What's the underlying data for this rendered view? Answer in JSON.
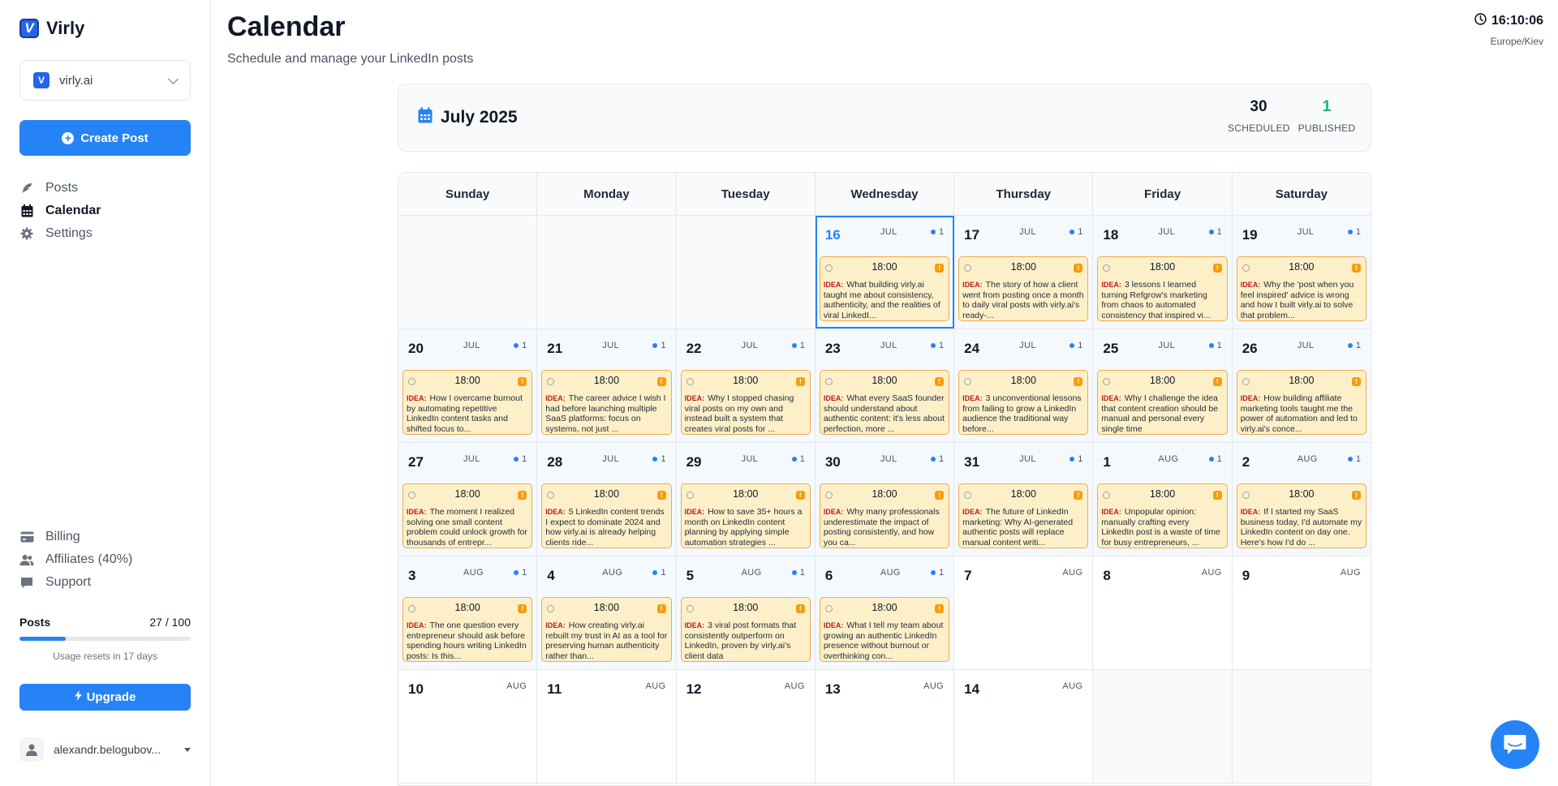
{
  "brand": {
    "logo_letter": "V",
    "name": "Virly"
  },
  "workspace": {
    "logo_letter": "V",
    "name": "virly.ai"
  },
  "create_post_label": "Create Post",
  "nav": [
    {
      "label": "Posts",
      "icon": "feather-icon",
      "active": false
    },
    {
      "label": "Calendar",
      "icon": "calendar-icon",
      "active": true
    },
    {
      "label": "Settings",
      "icon": "gear-icon",
      "active": false
    }
  ],
  "bottom_nav": [
    {
      "label": "Billing",
      "icon": "credit-card-icon"
    },
    {
      "label": "Affiliates (40%)",
      "icon": "users-icon"
    },
    {
      "label": "Support",
      "icon": "chat-icon"
    }
  ],
  "usage": {
    "label": "Posts",
    "count": "27 / 100",
    "fraction": 0.27,
    "note": "Usage resets in 17 days"
  },
  "upgrade_label": "Upgrade",
  "user": {
    "name": "alexandr.belogubov..."
  },
  "header": {
    "title": "Calendar",
    "subtitle": "Schedule and manage your LinkedIn posts"
  },
  "clock": {
    "time": "16:10:06",
    "timezone": "Europe/Kiev"
  },
  "month": {
    "label": "July 2025",
    "scheduled_count": "30",
    "scheduled_label": "SCHEDULED",
    "published_count": "1",
    "published_label": "PUBLISHED"
  },
  "colors": {
    "accent": "#2583f5",
    "published": "#16b57a",
    "post_bg": "#fdf0c9",
    "post_border": "#f2a94b"
  },
  "weekdays": [
    "Sunday",
    "Monday",
    "Tuesday",
    "Wednesday",
    "Thursday",
    "Friday",
    "Saturday"
  ],
  "weeks": [
    [
      {
        "empty": true
      },
      {
        "empty": true
      },
      {
        "empty": true
      },
      {
        "day": "16",
        "month": "JUL",
        "count": "1",
        "today": true,
        "post": {
          "time": "18:00",
          "tag": "IDEA:",
          "text": "What building virly.ai taught me about consistency, authenticity, and the realities of viral LinkedI..."
        }
      },
      {
        "day": "17",
        "month": "JUL",
        "count": "1",
        "post": {
          "time": "18:00",
          "tag": "IDEA:",
          "text": "The story of how a client went from posting once a month to daily viral posts with virly.ai's ready-..."
        }
      },
      {
        "day": "18",
        "month": "JUL",
        "count": "1",
        "post": {
          "time": "18:00",
          "tag": "IDEA:",
          "text": "3 lessons I learned turning Refgrow's marketing from chaos to automated consistency that inspired vi..."
        }
      },
      {
        "day": "19",
        "month": "JUL",
        "count": "1",
        "post": {
          "time": "18:00",
          "tag": "IDEA:",
          "text": "Why the 'post when you feel inspired' advice is wrong and how I built virly.ai to solve that problem..."
        }
      }
    ],
    [
      {
        "day": "20",
        "month": "JUL",
        "count": "1",
        "post": {
          "time": "18:00",
          "tag": "IDEA:",
          "text": "How I overcame burnout by automating repetitive LinkedIn content tasks and shifted focus to..."
        }
      },
      {
        "day": "21",
        "month": "JUL",
        "count": "1",
        "post": {
          "time": "18:00",
          "tag": "IDEA:",
          "text": "The career advice I wish I had before launching multiple SaaS platforms: focus on systems, not just ..."
        }
      },
      {
        "day": "22",
        "month": "JUL",
        "count": "1",
        "post": {
          "time": "18:00",
          "tag": "IDEA:",
          "text": "Why I stopped chasing viral posts on my own and instead built a system that creates viral posts for ..."
        }
      },
      {
        "day": "23",
        "month": "JUL",
        "count": "1",
        "post": {
          "time": "18:00",
          "tag": "IDEA:",
          "text": "What every SaaS founder should understand about authentic content: it's less about perfection, more ..."
        }
      },
      {
        "day": "24",
        "month": "JUL",
        "count": "1",
        "post": {
          "time": "18:00",
          "tag": "IDEA:",
          "text": "3 unconventional lessons from failing to grow a LinkedIn audience the traditional way before..."
        }
      },
      {
        "day": "25",
        "month": "JUL",
        "count": "1",
        "post": {
          "time": "18:00",
          "tag": "IDEA:",
          "text": "Why I challenge the idea that content creation should be manual and personal every single time"
        }
      },
      {
        "day": "26",
        "month": "JUL",
        "count": "1",
        "post": {
          "time": "18:00",
          "tag": "IDEA:",
          "text": "How building affiliate marketing tools taught me the power of automation and led to virly.ai's conce..."
        }
      }
    ],
    [
      {
        "day": "27",
        "month": "JUL",
        "count": "1",
        "post": {
          "time": "18:00",
          "tag": "IDEA:",
          "text": "The moment I realized solving one small content problem could unlock growth for thousands of entrepr..."
        }
      },
      {
        "day": "28",
        "month": "JUL",
        "count": "1",
        "post": {
          "time": "18:00",
          "tag": "IDEA:",
          "text": "5 LinkedIn content trends I expect to dominate 2024 and how virly.ai is already helping clients ride..."
        }
      },
      {
        "day": "29",
        "month": "JUL",
        "count": "1",
        "post": {
          "time": "18:00",
          "tag": "IDEA:",
          "text": "How to save 35+ hours a month on LinkedIn content planning by applying simple automation strategies ..."
        }
      },
      {
        "day": "30",
        "month": "JUL",
        "count": "1",
        "post": {
          "time": "18:00",
          "tag": "IDEA:",
          "text": "Why many professionals underestimate the impact of posting consistently, and how you ca..."
        }
      },
      {
        "day": "31",
        "month": "JUL",
        "count": "1",
        "post": {
          "time": "18:00",
          "tag": "IDEA:",
          "text": "The future of LinkedIn marketing: Why AI-generated authentic posts will replace manual content writi..."
        }
      },
      {
        "day": "1",
        "month": "AUG",
        "count": "1",
        "post": {
          "time": "18:00",
          "tag": "IDEA:",
          "text": "Unpopular opinion: manually crafting every LinkedIn post is a waste of time for busy entrepreneurs, ..."
        }
      },
      {
        "day": "2",
        "month": "AUG",
        "count": "1",
        "post": {
          "time": "18:00",
          "tag": "IDEA:",
          "text": "If I started my SaaS business today, I'd automate my LinkedIn content on day one. Here's how I'd do ..."
        }
      }
    ],
    [
      {
        "day": "3",
        "month": "AUG",
        "count": "1",
        "post": {
          "time": "18:00",
          "tag": "IDEA:",
          "text": "The one question every entrepreneur should ask before spending hours writing LinkedIn posts: Is this..."
        }
      },
      {
        "day": "4",
        "month": "AUG",
        "count": "1",
        "post": {
          "time": "18:00",
          "tag": "IDEA:",
          "text": "How creating virly.ai rebuilt my trust in AI as a tool for preserving human authenticity rather than..."
        }
      },
      {
        "day": "5",
        "month": "AUG",
        "count": "1",
        "post": {
          "time": "18:00",
          "tag": "IDEA:",
          "text": "3 viral post formats that consistently outperform on LinkedIn, proven by virly.ai's client data"
        }
      },
      {
        "day": "6",
        "month": "AUG",
        "count": "1",
        "post": {
          "time": "18:00",
          "tag": "IDEA:",
          "text": "What I tell my team about growing an authentic LinkedIn presence without burnout or overthinking con..."
        }
      },
      {
        "day": "7",
        "month": "AUG"
      },
      {
        "day": "8",
        "month": "AUG"
      },
      {
        "day": "9",
        "month": "AUG"
      }
    ],
    [
      {
        "day": "10",
        "month": "AUG"
      },
      {
        "day": "11",
        "month": "AUG"
      },
      {
        "day": "12",
        "month": "AUG"
      },
      {
        "day": "13",
        "month": "AUG"
      },
      {
        "day": "14",
        "month": "AUG"
      },
      {
        "empty": true
      },
      {
        "empty": true
      }
    ]
  ]
}
